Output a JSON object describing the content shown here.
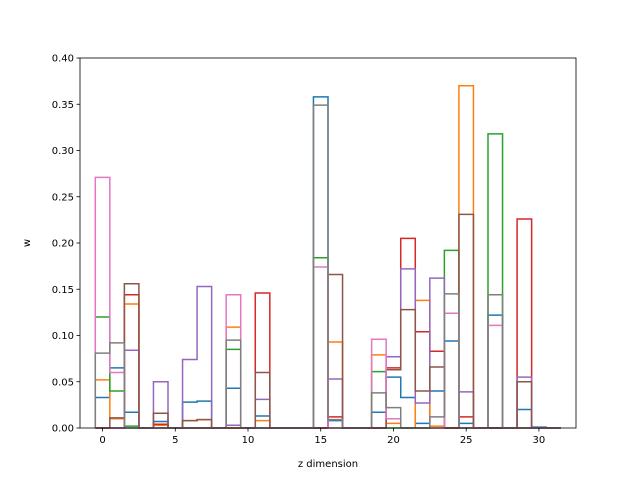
{
  "chart_data": {
    "type": "step",
    "title": "",
    "xlabel": "z dimension",
    "ylabel": "w",
    "xlim": [
      -1.55,
      32.55
    ],
    "ylim": [
      0,
      0.4
    ],
    "xticks": [
      0,
      5,
      10,
      15,
      20,
      25,
      30
    ],
    "yticks": [
      0.0,
      0.05,
      0.1,
      0.15,
      0.2,
      0.25,
      0.3,
      0.35,
      0.4
    ],
    "ytick_labels": [
      "0.00",
      "0.05",
      "0.10",
      "0.15",
      "0.20",
      "0.25",
      "0.30",
      "0.35",
      "0.40"
    ],
    "grid": false,
    "legend": "none",
    "bins": [
      0,
      1,
      2,
      3,
      4,
      5,
      6,
      7,
      8,
      9,
      10,
      11,
      12,
      13,
      14,
      15,
      16,
      17,
      18,
      19,
      20,
      21,
      22,
      23,
      24,
      25,
      26,
      27,
      28,
      29,
      30,
      31
    ],
    "series": [
      {
        "color": "#1f77b4",
        "values": [
          0.033,
          0.065,
          0.017,
          0.0,
          0.007,
          0.0,
          0.028,
          0.029,
          0.0,
          0.043,
          0.0,
          0.013,
          0.0,
          0.0,
          0.0,
          0.358,
          0.008,
          0.0,
          0.0,
          0.017,
          0.055,
          0.033,
          0.005,
          0.04,
          0.094,
          0.005,
          0.0,
          0.122,
          0.0,
          0.02,
          0.001,
          0.0
        ]
      },
      {
        "color": "#ff7f0e",
        "values": [
          0.052,
          0.01,
          0.134,
          0.0,
          0.003,
          0.0,
          0.008,
          0.009,
          0.0,
          0.109,
          0.0,
          0.008,
          0.0,
          0.0,
          0.0,
          0.0,
          0.093,
          0.0,
          0.0,
          0.079,
          0.005,
          0.0,
          0.138,
          0.002,
          0.0,
          0.37,
          0.0,
          0.0,
          0.0,
          0.0,
          0.0,
          0.0
        ]
      },
      {
        "color": "#2ca02c",
        "values": [
          0.12,
          0.04,
          0.002,
          0.0,
          0.0,
          0.0,
          0.0,
          0.0,
          0.0,
          0.085,
          0.0,
          0.0,
          0.0,
          0.0,
          0.0,
          0.184,
          0.0,
          0.0,
          0.0,
          0.061,
          0.0,
          0.0,
          0.0,
          0.0,
          0.192,
          0.0,
          0.0,
          0.318,
          0.0,
          0.0,
          0.0,
          0.0
        ]
      },
      {
        "color": "#d62728",
        "values": [
          0.0,
          0.0,
          0.144,
          0.0,
          0.004,
          0.0,
          0.0,
          0.0,
          0.0,
          0.0,
          0.0,
          0.146,
          0.0,
          0.0,
          0.0,
          0.0,
          0.012,
          0.0,
          0.0,
          0.0,
          0.065,
          0.205,
          0.104,
          0.083,
          0.0,
          0.012,
          0.0,
          0.0,
          0.0,
          0.226,
          0.0,
          0.0
        ]
      },
      {
        "color": "#9467bd",
        "values": [
          0.0,
          0.0,
          0.084,
          0.0,
          0.05,
          0.0,
          0.074,
          0.153,
          0.0,
          0.003,
          0.0,
          0.031,
          0.0,
          0.0,
          0.0,
          0.0,
          0.053,
          0.0,
          0.0,
          0.0,
          0.077,
          0.172,
          0.027,
          0.162,
          0.0,
          0.039,
          0.0,
          0.0,
          0.0,
          0.055,
          0.0,
          0.0
        ]
      },
      {
        "color": "#8c564b",
        "values": [
          0.0,
          0.011,
          0.156,
          0.0,
          0.016,
          0.0,
          0.008,
          0.009,
          0.0,
          0.0,
          0.0,
          0.06,
          0.0,
          0.0,
          0.0,
          0.0,
          0.166,
          0.0,
          0.0,
          0.0,
          0.063,
          0.128,
          0.04,
          0.066,
          0.0,
          0.231,
          0.0,
          0.0,
          0.0,
          0.05,
          0.0,
          0.0
        ]
      },
      {
        "color": "#e377c2",
        "values": [
          0.271,
          0.06,
          0.0,
          0.0,
          0.0,
          0.0,
          0.0,
          0.0,
          0.0,
          0.144,
          0.0,
          0.0,
          0.0,
          0.0,
          0.0,
          0.174,
          0.0,
          0.0,
          0.0,
          0.096,
          0.01,
          0.0,
          0.0,
          0.0,
          0.124,
          0.0,
          0.0,
          0.111,
          0.0,
          0.0,
          0.0,
          0.0
        ]
      },
      {
        "color": "#7f7f7f",
        "values": [
          0.081,
          0.092,
          0.0,
          0.0,
          0.0,
          0.0,
          0.0,
          0.0,
          0.0,
          0.095,
          0.0,
          0.0,
          0.0,
          0.0,
          0.0,
          0.349,
          0.009,
          0.0,
          0.0,
          0.038,
          0.022,
          0.0,
          0.0,
          0.012,
          0.145,
          0.0,
          0.0,
          0.144,
          0.0,
          0.0,
          0.0,
          0.0
        ]
      }
    ]
  }
}
